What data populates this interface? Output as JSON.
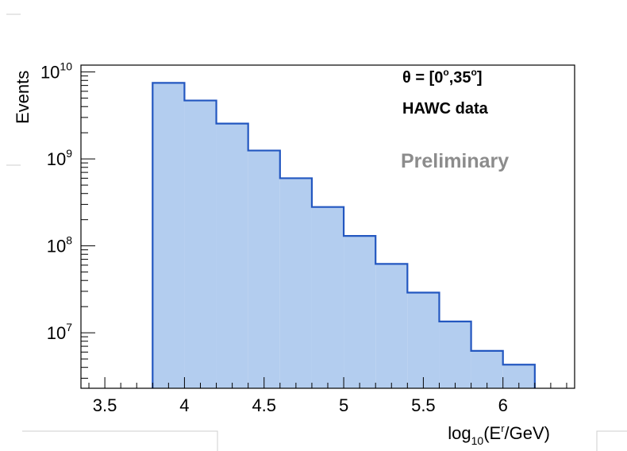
{
  "chart_data": {
    "type": "bar",
    "style": "step-histogram",
    "xlabel": "log10(E'/GeV)",
    "ylabel": "Events",
    "xlim": [
      3.35,
      6.45
    ],
    "ylim": [
      2300000,
      12000000000
    ],
    "yscale": "log",
    "grid": false,
    "legend": "none",
    "fill_color": "#b3cdef",
    "line_color": "#2357c0",
    "bins": [
      {
        "x0": 3.8,
        "x1": 4.0,
        "value": 7500000000
      },
      {
        "x0": 4.0,
        "x1": 4.2,
        "value": 4700000000
      },
      {
        "x0": 4.2,
        "x1": 4.4,
        "value": 2550000000
      },
      {
        "x0": 4.4,
        "x1": 4.6,
        "value": 1250000000
      },
      {
        "x0": 4.6,
        "x1": 4.8,
        "value": 600000000
      },
      {
        "x0": 4.8,
        "x1": 5.0,
        "value": 280000000
      },
      {
        "x0": 5.0,
        "x1": 5.2,
        "value": 130000000
      },
      {
        "x0": 5.2,
        "x1": 5.4,
        "value": 62000000
      },
      {
        "x0": 5.4,
        "x1": 5.6,
        "value": 29000000
      },
      {
        "x0": 5.6,
        "x1": 5.8,
        "value": 13500000
      },
      {
        "x0": 5.8,
        "x1": 6.0,
        "value": 6200000
      },
      {
        "x0": 6.0,
        "x1": 6.2,
        "value": 4300000
      }
    ],
    "x_ticks": [
      {
        "value": 3.5,
        "label": "3.5"
      },
      {
        "value": 4.0,
        "label": "4"
      },
      {
        "value": 4.5,
        "label": "4.5"
      },
      {
        "value": 5.0,
        "label": "5"
      },
      {
        "value": 5.5,
        "label": "5.5"
      },
      {
        "value": 6.0,
        "label": "6"
      }
    ],
    "y_ticks": [
      {
        "value": 10000000,
        "base": "10",
        "exp": "7"
      },
      {
        "value": 100000000,
        "base": "10",
        "exp": "8"
      },
      {
        "value": 1000000000,
        "base": "10",
        "exp": "9"
      },
      {
        "value": 10000000000,
        "base": "10",
        "exp": "10"
      }
    ],
    "xlabel_parts": {
      "pre": "log",
      "sub": "10",
      "mid": "(E",
      "sup": "r",
      "post": "/GeV)"
    },
    "annotations": {
      "theta_pre": "θ = [0",
      "theta_deg": "o",
      "theta_mid": ",35",
      "theta_post": "]",
      "dataset": "HAWC data",
      "preliminary": "Preliminary"
    }
  }
}
